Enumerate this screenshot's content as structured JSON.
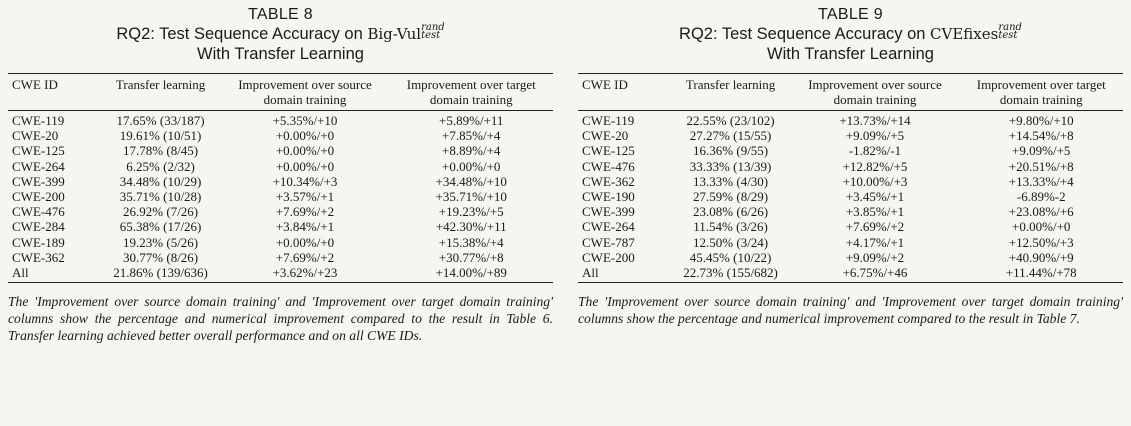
{
  "tables": [
    {
      "number": "TABLE 8",
      "title_prefix": "RQ2: Test Sequence Accuracy on ",
      "dataset": "Big-Vul",
      "sup": "rand",
      "sub": "test",
      "title_line2": "With Transfer Learning",
      "headers": [
        "CWE ID",
        "Transfer learning",
        "Improvement over source domain training",
        "Improvement over target domain training"
      ],
      "rows": [
        [
          "CWE-119",
          "17.65% (33/187)",
          "+5.35%/+10",
          "+5.89%/+11"
        ],
        [
          "CWE-20",
          "19.61% (10/51)",
          "+0.00%/+0",
          "+7.85%/+4"
        ],
        [
          "CWE-125",
          "17.78% (8/45)",
          "+0.00%/+0",
          "+8.89%/+4"
        ],
        [
          "CWE-264",
          "6.25% (2/32)",
          "+0.00%/+0",
          "+0.00%/+0"
        ],
        [
          "CWE-399",
          "34.48% (10/29)",
          "+10.34%/+3",
          "+34.48%/+10"
        ],
        [
          "CWE-200",
          "35.71% (10/28)",
          "+3.57%/+1",
          "+35.71%/+10"
        ],
        [
          "CWE-476",
          "26.92% (7/26)",
          "+7.69%/+2",
          "+19.23%/+5"
        ],
        [
          "CWE-284",
          "65.38% (17/26)",
          "+3.84%/+1",
          "+42.30%/+11"
        ],
        [
          "CWE-189",
          "19.23% (5/26)",
          "+0.00%/+0",
          "+15.38%/+4"
        ],
        [
          "CWE-362",
          "30.77% (8/26)",
          "+7.69%/+2",
          "+30.77%/+8"
        ],
        [
          "All",
          "21.86% (139/636)",
          "+3.62%/+23",
          "+14.00%/+89"
        ]
      ],
      "caption": "The 'Improvement over source domain training' and 'Improvement over target domain training' columns show the percentage and numerical improvement compared to the result in Table 6. Transfer learning achieved better overall performance and on all CWE IDs."
    },
    {
      "number": "TABLE 9",
      "title_prefix": "RQ2: Test Sequence Accuracy on ",
      "dataset": "CVEfixes",
      "sup": "rand",
      "sub": "test",
      "title_line2": "With Transfer Learning",
      "headers": [
        "CWE ID",
        "Transfer learning",
        "Improvement over source domain training",
        "Improvement over target domain training"
      ],
      "rows": [
        [
          "CWE-119",
          "22.55% (23/102)",
          "+13.73%/+14",
          "+9.80%/+10"
        ],
        [
          "CWE-20",
          "27.27% (15/55)",
          "+9.09%/+5",
          "+14.54%/+8"
        ],
        [
          "CWE-125",
          "16.36% (9/55)",
          "-1.82%/-1",
          "+9.09%/+5"
        ],
        [
          "CWE-476",
          "33.33% (13/39)",
          "+12.82%/+5",
          "+20.51%/+8"
        ],
        [
          "CWE-362",
          "13.33% (4/30)",
          "+10.00%/+3",
          "+13.33%/+4"
        ],
        [
          "CWE-190",
          "27.59% (8/29)",
          "+3.45%/+1",
          "-6.89%-2"
        ],
        [
          "CWE-399",
          "23.08% (6/26)",
          "+3.85%/+1",
          "+23.08%/+6"
        ],
        [
          "CWE-264",
          "11.54% (3/26)",
          "+7.69%/+2",
          "+0.00%/+0"
        ],
        [
          "CWE-787",
          "12.50% (3/24)",
          "+4.17%/+1",
          "+12.50%/+3"
        ],
        [
          "CWE-200",
          "45.45% (10/22)",
          "+9.09%/+2",
          "+40.90%/+9"
        ],
        [
          "All",
          "22.73% (155/682)",
          "+6.75%/+46",
          "+11.44%/+78"
        ]
      ],
      "caption": "The 'Improvement over source domain training' and 'Improvement over target domain training' columns show the percentage and numerical improvement compared to the result in Table 7."
    }
  ]
}
